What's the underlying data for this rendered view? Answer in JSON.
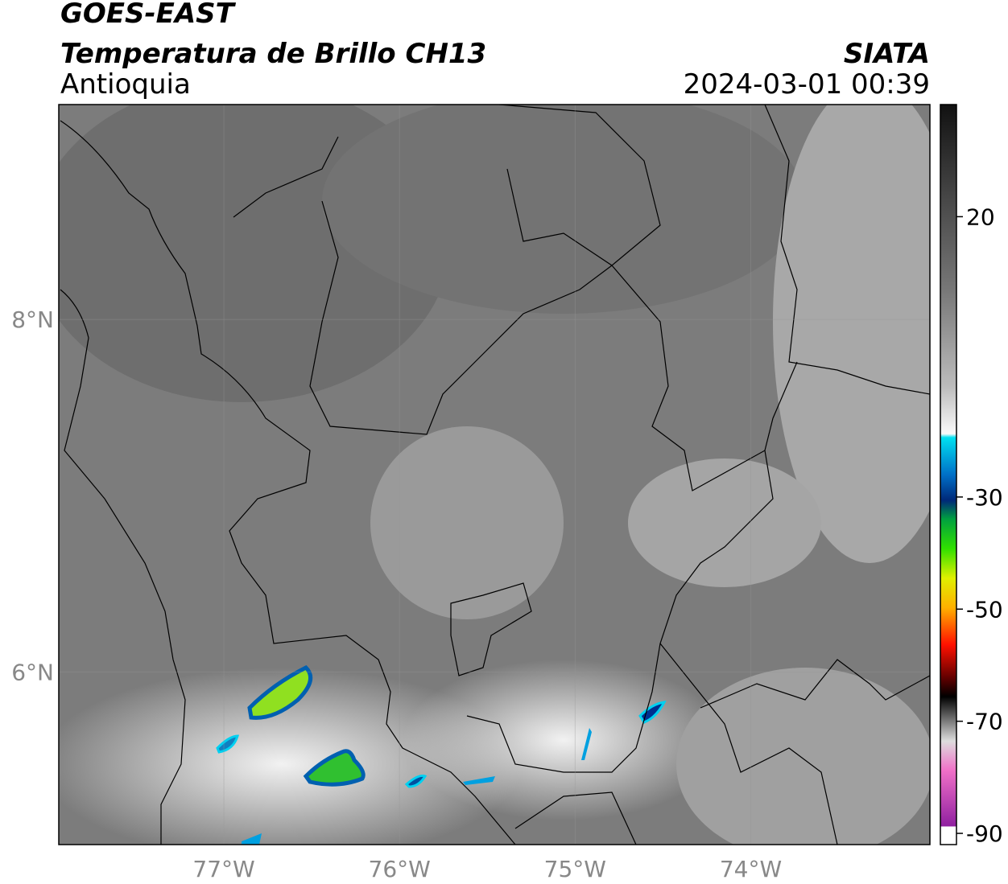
{
  "header": {
    "title": "GOES-EAST",
    "subtitle": "Temperatura de Brillo CH13",
    "region": "Antioquia",
    "source": "SIATA",
    "datetime": "2024-03-01 00:39"
  },
  "map": {
    "lon_extent": [
      -77.94,
      -72.98
    ],
    "lat_extent": [
      5.02,
      9.22
    ],
    "lon_ticks": [
      {
        "value": -77,
        "label": "77°W"
      },
      {
        "value": -76,
        "label": "76°W"
      },
      {
        "value": -75,
        "label": "75°W"
      },
      {
        "value": -74,
        "label": "74°W"
      }
    ],
    "lat_ticks": [
      {
        "value": 8,
        "label": "8°N"
      },
      {
        "value": 6,
        "label": "6°N"
      }
    ]
  },
  "colorbar": {
    "range": [
      -92,
      40
    ],
    "ticks": [
      20,
      -30,
      -50,
      -70,
      -90
    ]
  }
}
